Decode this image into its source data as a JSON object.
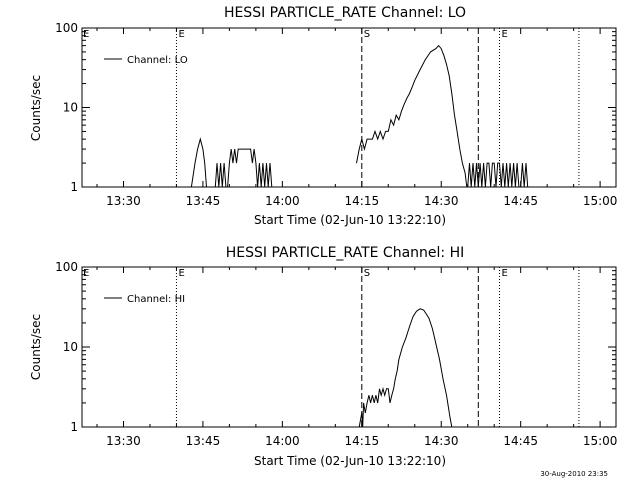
{
  "footer": {
    "timestamp": "30-Aug-2010 23:35"
  },
  "chart_data": [
    {
      "type": "line",
      "title": "HESSI PARTICLE_RATE Channel: LO",
      "xlabel": "Start Time (02-Jun-10 13:22:10)",
      "ylabel": "Counts/sec",
      "legend": {
        "label": "Channel: LO",
        "position": "top-left"
      },
      "yscale": "log",
      "ylim": [
        1,
        100
      ],
      "xlim": [
        "13:22:10",
        "15:03:00"
      ],
      "x_ticks": [
        "13:30",
        "13:45",
        "14:00",
        "14:15",
        "14:30",
        "14:45",
        "15:00"
      ],
      "y_ticks": [
        "1",
        "10",
        "100"
      ],
      "markers": [
        {
          "time": "13:40",
          "style": "dotted",
          "label": "E"
        },
        {
          "time": "14:15",
          "style": "dashed",
          "label": "S"
        },
        {
          "time": "14:37",
          "style": "dashed",
          "label": ""
        },
        {
          "time": "14:41",
          "style": "dotted",
          "label": "E"
        },
        {
          "time": "14:56",
          "style": "dotted",
          "label": ""
        }
      ],
      "series": [
        {
          "name": "Channel: LO",
          "x": [
            "13:42:50",
            "13:43:30",
            "13:44:00",
            "13:44:30",
            "13:45:00",
            "13:45:20",
            "13:45:40",
            "13:46:00",
            "13:46:40",
            "13:47:00",
            "13:47:20",
            "13:47:40",
            "13:48:00",
            "13:48:20",
            "13:48:40",
            "13:49:00",
            "13:49:20",
            "13:49:40",
            "13:50:00",
            "13:50:20",
            "13:50:40",
            "13:51:00",
            "13:51:20",
            "13:51:40",
            "13:52:00",
            "13:52:40",
            "13:53:20",
            "13:54:00",
            "13:54:20",
            "13:54:40",
            "13:55:00",
            "13:55:20",
            "13:55:40",
            "13:56:00",
            "13:56:20",
            "13:56:40",
            "13:57:00",
            "13:57:20",
            "13:57:40",
            "13:58:00"
          ],
          "y": [
            1,
            2,
            3,
            4,
            3,
            2,
            1,
            1,
            1,
            1,
            1,
            2,
            1,
            2,
            1,
            2,
            1,
            1,
            2,
            3,
            2,
            3,
            2,
            3,
            3,
            3,
            3,
            3,
            2,
            3,
            2,
            1,
            2,
            1,
            2,
            1,
            2,
            1,
            2,
            1
          ]
        },
        {
          "name": "Channel: LO",
          "x": [
            "14:14:00",
            "14:14:30",
            "14:15:00",
            "14:15:30",
            "14:16:00",
            "14:16:30",
            "14:17:00",
            "14:17:30",
            "14:18:00",
            "14:18:30",
            "14:19:00",
            "14:19:30",
            "14:20:00",
            "14:20:30",
            "14:21:00",
            "14:21:30",
            "14:22:00",
            "14:22:30",
            "14:23:00",
            "14:23:30",
            "14:24:00",
            "14:24:30",
            "14:25:00",
            "14:26:00",
            "14:27:00",
            "14:28:00",
            "14:29:00",
            "14:29:30",
            "14:30:00",
            "14:30:30",
            "14:31:00",
            "14:31:30",
            "14:32:00",
            "14:32:30",
            "14:33:00",
            "14:33:30",
            "14:34:00",
            "14:34:30",
            "14:34:50"
          ],
          "y": [
            2,
            3,
            4,
            3,
            4,
            4,
            4,
            5,
            4,
            5,
            4,
            5,
            5,
            7,
            6,
            8,
            7,
            9,
            11,
            13,
            15,
            18,
            22,
            30,
            40,
            50,
            55,
            60,
            55,
            45,
            35,
            25,
            15,
            8,
            5,
            3,
            2,
            1.5,
            1
          ]
        },
        {
          "name": "Channel: LO",
          "x": [
            "14:35:00",
            "14:35:20",
            "14:35:40",
            "14:36:00",
            "14:36:20",
            "14:36:40",
            "14:37:00",
            "14:37:20",
            "14:37:40",
            "14:38:00",
            "14:38:20",
            "14:38:40",
            "14:39:00",
            "14:39:20",
            "14:39:40",
            "14:40:00",
            "14:40:20",
            "14:40:40",
            "14:41:00",
            "14:41:20",
            "14:41:40",
            "14:42:00",
            "14:42:20",
            "14:42:40",
            "14:43:00",
            "14:43:20",
            "14:43:40",
            "14:44:00",
            "14:44:20",
            "14:44:40",
            "14:45:00",
            "14:45:20",
            "14:45:40",
            "14:46:00",
            "14:46:20"
          ],
          "y": [
            1,
            2,
            1,
            2,
            1,
            2,
            1,
            2,
            1,
            2,
            1,
            2,
            2,
            1,
            2,
            2,
            1,
            2,
            2,
            1,
            2,
            1,
            2,
            1,
            2,
            1,
            2,
            1,
            2,
            1,
            1,
            2,
            1,
            2,
            1
          ]
        }
      ]
    },
    {
      "type": "line",
      "title": "HESSI PARTICLE_RATE Channel: HI",
      "xlabel": "Start Time (02-Jun-10 13:22:10)",
      "ylabel": "Counts/sec",
      "legend": {
        "label": "Channel: HI",
        "position": "top-left"
      },
      "yscale": "log",
      "ylim": [
        1,
        100
      ],
      "xlim": [
        "13:22:10",
        "15:03:00"
      ],
      "x_ticks": [
        "13:30",
        "13:45",
        "14:00",
        "14:15",
        "14:30",
        "14:45",
        "15:00"
      ],
      "y_ticks": [
        "1",
        "10",
        "100"
      ],
      "markers": [
        {
          "time": "13:40",
          "style": "dotted",
          "label": "E"
        },
        {
          "time": "14:15",
          "style": "dashed",
          "label": "S"
        },
        {
          "time": "14:37",
          "style": "dashed",
          "label": ""
        },
        {
          "time": "14:41",
          "style": "dotted",
          "label": "E"
        },
        {
          "time": "14:56",
          "style": "dotted",
          "label": ""
        }
      ],
      "series": [
        {
          "name": "Channel: HI",
          "x": [
            "14:14:30",
            "14:15:00",
            "14:15:10",
            "14:15:20",
            "14:15:40",
            "14:16:00",
            "14:16:20",
            "14:16:40",
            "14:17:00",
            "14:17:20",
            "14:17:40",
            "14:18:00",
            "14:18:20",
            "14:18:40",
            "14:19:00",
            "14:19:20",
            "14:19:40",
            "14:20:00",
            "14:20:20",
            "14:20:40",
            "14:21:00",
            "14:21:20",
            "14:21:40",
            "14:22:00",
            "14:22:40",
            "14:23:20",
            "14:24:00",
            "14:24:40",
            "14:25:20",
            "14:26:00",
            "14:26:40",
            "14:27:00",
            "14:27:40",
            "14:28:20",
            "14:29:00",
            "14:29:40",
            "14:30:20",
            "14:31:00",
            "14:31:40",
            "14:32:00"
          ],
          "y": [
            1,
            1.5,
            1,
            2,
            1.5,
            2,
            2.5,
            2,
            2.5,
            2,
            2.5,
            2,
            3,
            2.5,
            3,
            2.5,
            3,
            3,
            2,
            2.5,
            3,
            4,
            5,
            7,
            10,
            13,
            18,
            24,
            28,
            30,
            29,
            27,
            23,
            17,
            11,
            7,
            4,
            2.5,
            1.3,
            1
          ]
        }
      ]
    }
  ]
}
